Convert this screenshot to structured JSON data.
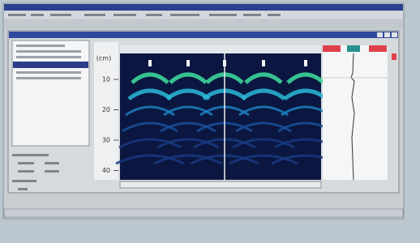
{
  "scan": {
    "depth_unit": "(cm)",
    "depth_ticks": [
      "10",
      "20",
      "30",
      "40"
    ]
  }
}
